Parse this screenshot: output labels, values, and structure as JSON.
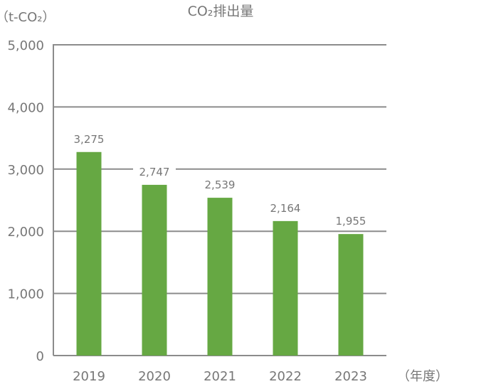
{
  "chart_data": {
    "type": "bar",
    "title": "CO₂排出量",
    "ylabel": "（t-CO₂）",
    "xlabel": "（年度）",
    "categories": [
      "2019",
      "2020",
      "2021",
      "2022",
      "2023"
    ],
    "values": [
      3275,
      2747,
      2539,
      2164,
      1955
    ],
    "data_labels": [
      "3,275",
      "2,747",
      "2,539",
      "2,164",
      "1,955"
    ],
    "ylim": [
      0,
      5000
    ],
    "yticks": [
      0,
      1000,
      2000,
      3000,
      4000,
      5000
    ],
    "ytick_labels": [
      "0",
      "1,000",
      "2,000",
      "3,000",
      "4,000",
      "5,000"
    ],
    "grid": true,
    "colors": {
      "bar": "#66a843",
      "grid": "#8c8c8c",
      "text": "#777777"
    }
  }
}
